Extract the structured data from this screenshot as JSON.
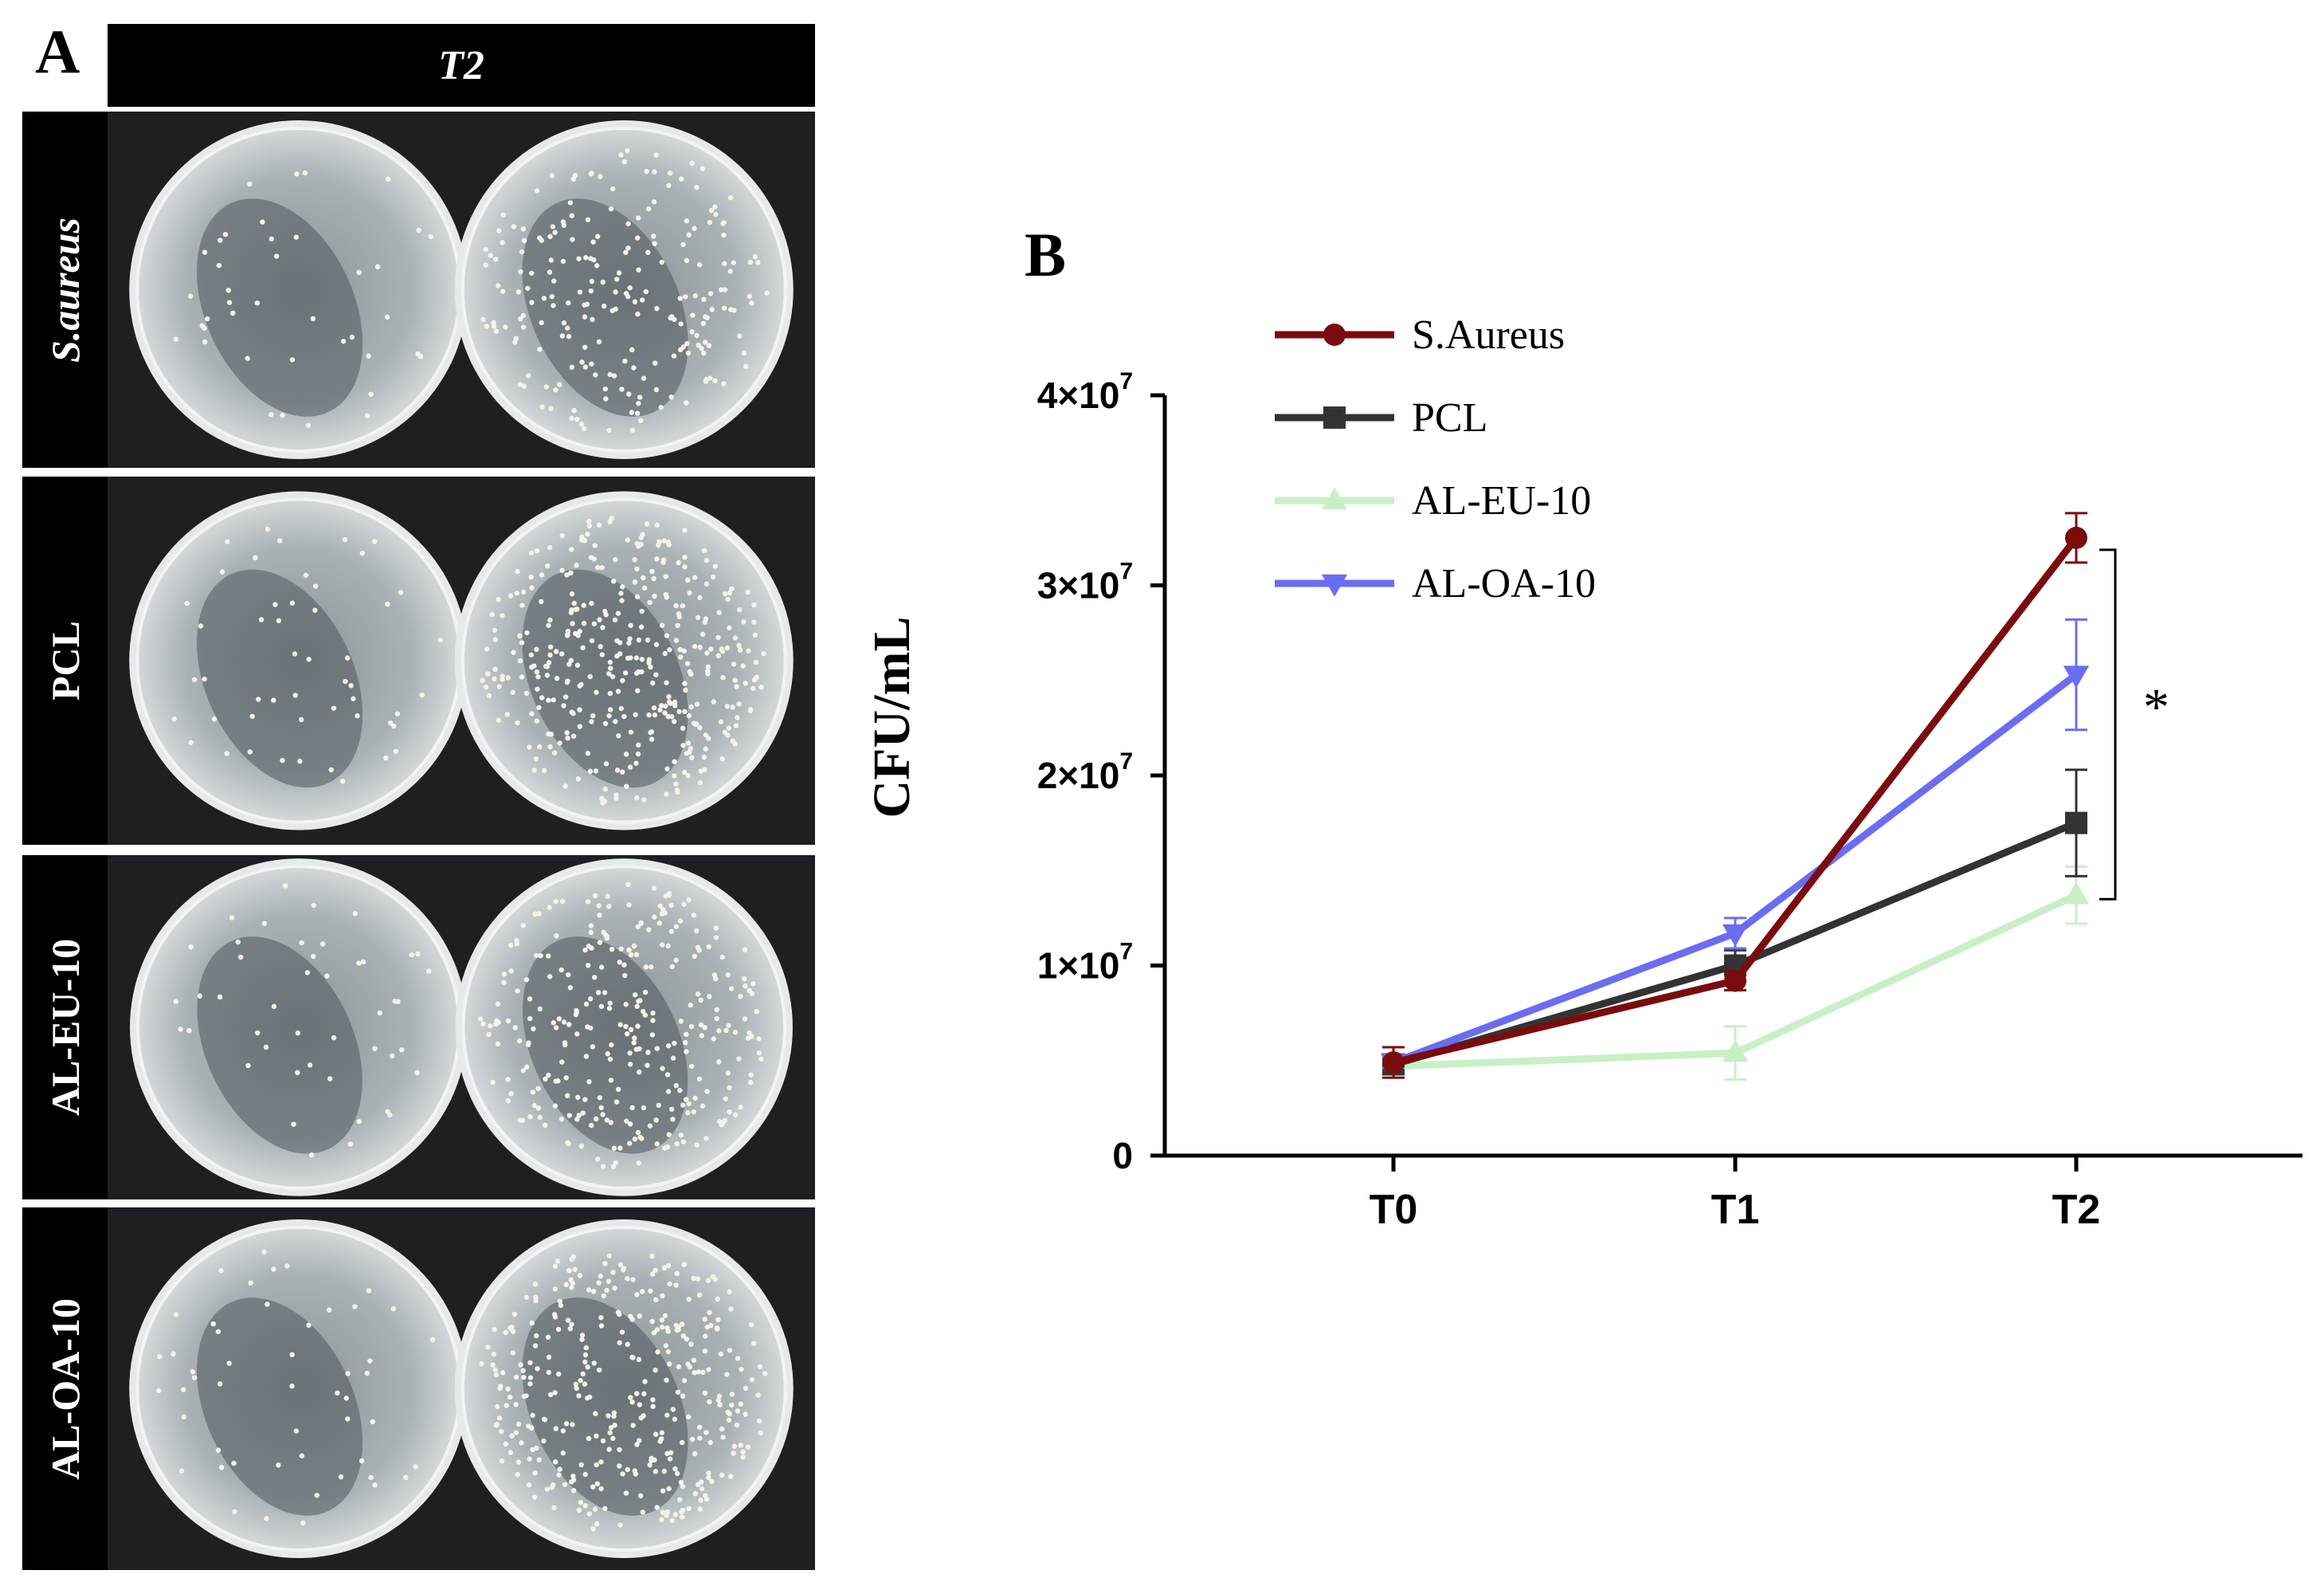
{
  "panel_a": {
    "letter": "A",
    "column_header": "T2",
    "rows": [
      {
        "label": "S.aureus",
        "italic": true
      },
      {
        "label": "PCL",
        "italic": false
      },
      {
        "label": "AL-EU-10",
        "italic": false
      },
      {
        "label": "AL-OA-10",
        "italic": false
      }
    ]
  },
  "panel_b": {
    "letter": "B",
    "significance": "*"
  },
  "chart_data": {
    "type": "line",
    "categories": [
      "T0",
      "T1",
      "T2"
    ],
    "ylabel": "CFU/mL",
    "ylim": [
      0,
      40000000
    ],
    "yticks": [
      {
        "value": 0,
        "label": "0",
        "exp": ""
      },
      {
        "value": 10000000,
        "label": "1×10",
        "exp": "7"
      },
      {
        "value": 20000000,
        "label": "2×10",
        "exp": "7"
      },
      {
        "value": 30000000,
        "label": "3×10",
        "exp": "7"
      },
      {
        "value": 40000000,
        "label": "4×10",
        "exp": "7"
      }
    ],
    "legend_position": "top-left",
    "series": [
      {
        "name": "S.Aureus",
        "color": "#7b0c0e",
        "marker": "circle",
        "values": [
          4900000,
          9200000,
          32500000
        ],
        "errors": [
          800000,
          500000,
          1300000
        ]
      },
      {
        "name": "PCL",
        "color": "#333333",
        "marker": "square",
        "values": [
          4800000,
          10000000,
          17500000
        ],
        "errors": [
          300000,
          800000,
          2800000
        ]
      },
      {
        "name": "AL-EU-10",
        "color": "#c8f0c4",
        "marker": "triangle-up",
        "values": [
          4700000,
          5400000,
          13700000
        ],
        "errors": [
          300000,
          1400000,
          1500000
        ]
      },
      {
        "name": "AL-OA-10",
        "color": "#6a6df0",
        "marker": "triangle-down",
        "values": [
          4900000,
          11700000,
          25300000
        ],
        "errors": [
          300000,
          800000,
          2900000
        ]
      }
    ]
  }
}
